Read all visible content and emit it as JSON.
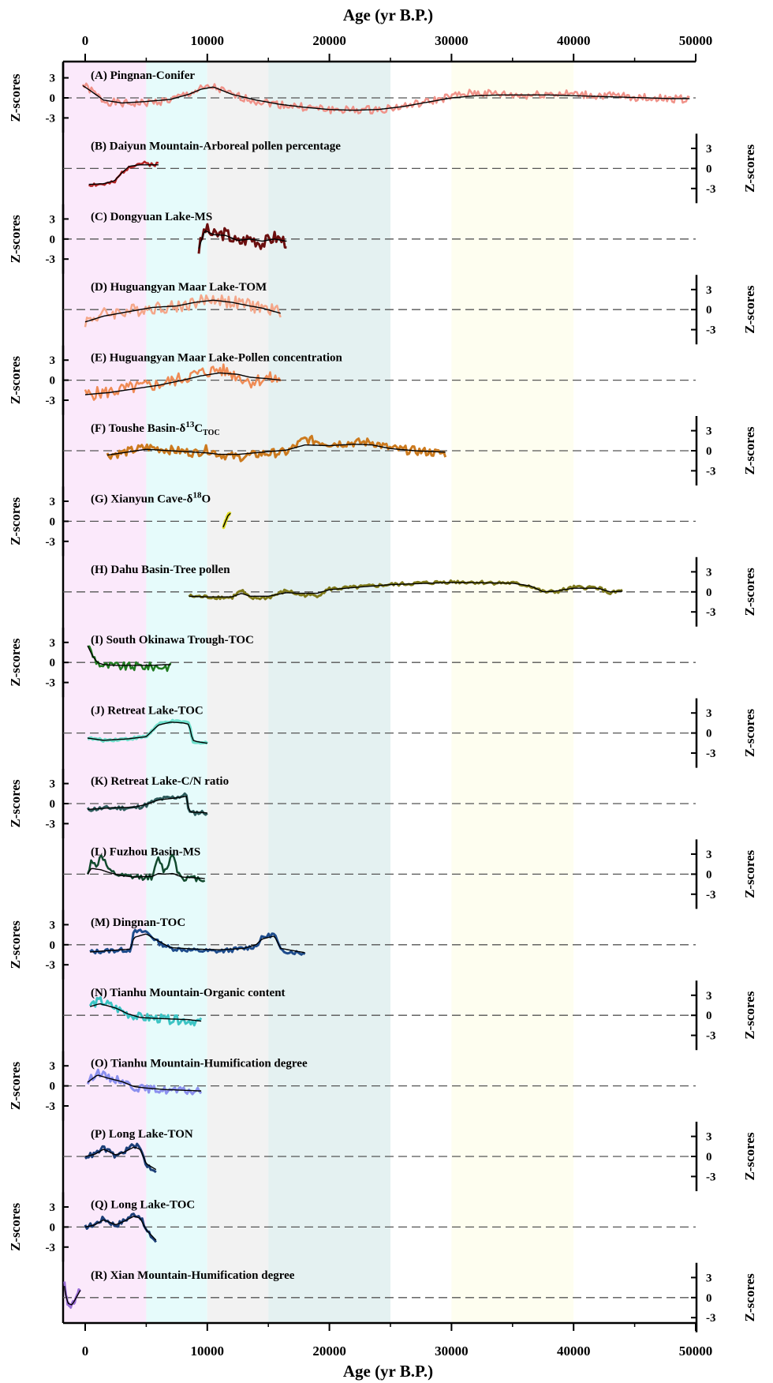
{
  "figure": {
    "x_axis_title": "Age (yr B.P.)",
    "y_axis_title": "Z-scores",
    "x_ticks": [
      0,
      10000,
      20000,
      30000,
      40000,
      50000
    ],
    "x_tick_labels": [
      "0",
      "10000",
      "20000",
      "30000",
      "40000",
      "50000"
    ],
    "z_ticks": [
      3,
      0,
      -3
    ],
    "z_tick_labels": [
      "3",
      "0",
      "-3"
    ]
  },
  "chart_data": {
    "type": "line",
    "title": "",
    "xlabel": "Age (yr B.P.)",
    "ylabel": "Z-scores",
    "xlim": [
      -1800,
      50000
    ],
    "ylim": [
      -4.5,
      4.5
    ],
    "shaded_bands": [
      {
        "from": -1800,
        "to": 5000,
        "color": "#fbe9fb"
      },
      {
        "from": 5000,
        "to": 10000,
        "color": "#e6fbfb"
      },
      {
        "from": 10000,
        "to": 15000,
        "color": "#f2f2f2"
      },
      {
        "from": 15000,
        "to": 25000,
        "color": "#e4f1f1"
      },
      {
        "from": 30000,
        "to": 40000,
        "color": "#fefef0"
      }
    ],
    "panels": [
      {
        "label": "(A) Pingnan-Conifer",
        "color": "#f0938a",
        "width": 2.5,
        "zero": 0,
        "noise": 0.55,
        "seed": 1,
        "x": [
          -200,
          500,
          1500,
          3000,
          5000,
          7000,
          8500,
          9500,
          10500,
          12000,
          14000,
          16000,
          18000,
          20000,
          22000,
          24000,
          26000,
          28000,
          30000,
          32000,
          34000,
          36000,
          38000,
          40000,
          42000,
          44000,
          46000,
          48000,
          49500
        ],
        "y": [
          1.8,
          1.0,
          -0.4,
          -0.8,
          -0.7,
          -0.3,
          0.6,
          1.2,
          1.5,
          0.4,
          -0.4,
          -0.9,
          -1.3,
          -1.6,
          -1.7,
          -1.6,
          -1.2,
          -0.6,
          0.2,
          0.7,
          0.5,
          0.3,
          0.6,
          0.5,
          0.3,
          0.2,
          0.0,
          -0.1,
          -0.2
        ],
        "trend_y": [
          1.7,
          0.9,
          -0.3,
          -0.7,
          -0.5,
          -0.2,
          0.5,
          1.2,
          1.5,
          0.5,
          -0.3,
          -0.9,
          -1.3,
          -1.6,
          -1.7,
          -1.6,
          -1.2,
          -0.6,
          0.0,
          0.3,
          0.4,
          0.4,
          0.4,
          0.3,
          0.2,
          0.1,
          0.0,
          -0.1,
          -0.1
        ]
      },
      {
        "label": "(B) Daiyun Mountain-Arboreal pollen percentage",
        "color": "#b22222",
        "width": 2.5,
        "zero": 0,
        "noise": 0.3,
        "seed": 2,
        "x": [
          300,
          1500,
          2400,
          3000,
          3600,
          4500,
          5500,
          6000
        ],
        "y": [
          -2.2,
          -2.2,
          -2.0,
          -0.6,
          0.3,
          0.7,
          0.6,
          0.6
        ],
        "trend_y": [
          -2.2,
          -2.1,
          -1.7,
          -0.6,
          0.3,
          0.5,
          0.5,
          0.5
        ]
      },
      {
        "label": "(C) Dongyuan Lake-MS",
        "color": "#6b0f0f",
        "width": 3,
        "zero": 0,
        "noise": 0.9,
        "seed": 3,
        "x": [
          9300,
          9800,
          10500,
          11500,
          12500,
          13500,
          14500,
          15500,
          16500
        ],
        "y": [
          -1.5,
          1.5,
          0.5,
          0.8,
          -0.5,
          0.2,
          -0.6,
          0.3,
          -0.4
        ],
        "trend_y": [
          -1.3,
          1.2,
          0.6,
          0.5,
          -0.2,
          0.0,
          -0.3,
          0.0,
          -0.3
        ]
      },
      {
        "label": "(D) Huguangyan Maar Lake-TOM",
        "color": "#f4a78a",
        "width": 2.5,
        "zero": 0,
        "noise": 0.9,
        "seed": 4,
        "x": [
          0,
          1500,
          3500,
          5500,
          7500,
          9000,
          10500,
          12000,
          13500,
          14500,
          16000
        ],
        "y": [
          -1.6,
          -0.6,
          -0.2,
          0.3,
          0.4,
          1.0,
          1.5,
          1.0,
          0.6,
          0.2,
          -0.3
        ],
        "trend_y": [
          -1.7,
          -0.9,
          -0.3,
          0.3,
          0.5,
          1.0,
          1.3,
          1.0,
          0.5,
          0.2,
          -0.5
        ]
      },
      {
        "label": "(E) Huguangyan Maar Lake-Pollen concentration",
        "color": "#ef8b55",
        "width": 2.5,
        "zero": 0,
        "noise": 0.9,
        "seed": 5,
        "x": [
          0,
          2000,
          4000,
          6000,
          8000,
          9500,
          11000,
          12500,
          13500,
          15000,
          16000
        ],
        "y": [
          -2.0,
          -1.6,
          -1.0,
          -0.6,
          0.3,
          1.0,
          1.5,
          0.6,
          -0.2,
          0.3,
          0.0
        ],
        "trend_y": [
          -2.0,
          -1.7,
          -1.2,
          -0.7,
          0.0,
          0.6,
          1.0,
          0.8,
          0.4,
          0.2,
          0.0
        ]
      },
      {
        "label": "(F) Toushe Basin-δ13CTOC",
        "label_html": true,
        "color": "#cc7a1e",
        "width": 3,
        "zero": 0,
        "noise": 0.6,
        "seed": 6,
        "x": [
          1800,
          3000,
          5000,
          7000,
          9000,
          10000,
          11000,
          12500,
          14500,
          16500,
          18000,
          20000,
          22000,
          23500,
          25000,
          27000,
          29500
        ],
        "y": [
          -0.6,
          -0.3,
          0.5,
          0.1,
          -0.3,
          0.2,
          -0.5,
          -0.9,
          -0.4,
          -0.2,
          1.6,
          1.0,
          1.1,
          1.2,
          0.3,
          0.0,
          -0.4
        ],
        "trend_y": [
          -0.6,
          -0.3,
          0.2,
          0.0,
          -0.2,
          -0.3,
          -0.5,
          -0.5,
          -0.2,
          0.1,
          0.8,
          0.7,
          0.9,
          0.8,
          0.3,
          0.0,
          -0.2
        ]
      },
      {
        "label": "(G) Xianyun Cave-δ18O",
        "label_html": true,
        "color": "#e0dc1e",
        "width": 4,
        "zero": 0,
        "noise": 0.2,
        "seed": 7,
        "x": [
          11300,
          11500,
          11700,
          11900
        ],
        "y": [
          -0.8,
          0.0,
          0.9,
          1.2
        ],
        "trend_y": [
          -0.8,
          0.0,
          0.8,
          1.1
        ]
      },
      {
        "label": "(H) Dahu Basin-Tree pollen",
        "color": "#7f7a1a",
        "width": 3,
        "zero": 0,
        "noise": 0.25,
        "seed": 8,
        "x": [
          8500,
          10000,
          12000,
          12800,
          13500,
          15000,
          16500,
          17500,
          19000,
          20000,
          22000,
          25000,
          30000,
          35000,
          36500,
          37500,
          38500,
          40000,
          42000,
          43000,
          44000
        ],
        "y": [
          -0.6,
          -0.7,
          -0.8,
          0.2,
          -0.9,
          -0.8,
          0.2,
          -0.4,
          -0.5,
          0.4,
          0.6,
          1.0,
          1.4,
          1.2,
          0.8,
          0.0,
          0.0,
          0.6,
          0.6,
          -0.2,
          0.2
        ],
        "trend_y": [
          -0.6,
          -0.7,
          -0.7,
          -0.2,
          -0.6,
          -0.6,
          -0.1,
          -0.2,
          -0.2,
          0.3,
          0.6,
          1.0,
          1.3,
          1.2,
          0.8,
          0.0,
          0.1,
          0.5,
          0.5,
          0.0,
          0.1
        ]
      },
      {
        "label": "(I) South Okinawa Trough-TOC",
        "color": "#1f7a1f",
        "width": 2.5,
        "zero": 0.6,
        "noise": 0.6,
        "seed": 9,
        "x": [
          200,
          600,
          1000,
          1500,
          2500,
          3500,
          4500,
          5500,
          6500,
          7000
        ],
        "y": [
          2.5,
          1.0,
          0.0,
          -0.5,
          -0.5,
          -0.6,
          -0.5,
          -0.6,
          -0.6,
          -0.6
        ],
        "trend_y": [
          2.3,
          0.9,
          0.0,
          -0.3,
          -0.4,
          -0.4,
          -0.4,
          -0.4,
          -0.3,
          -0.3
        ]
      },
      {
        "label": "(J) Retreat Lake-TOC",
        "color": "#6fe0cc",
        "width": 4,
        "zero": 0,
        "noise": 0.15,
        "seed": 10,
        "x": [
          200,
          1500,
          3500,
          5000,
          6000,
          7000,
          8000,
          8500,
          8800,
          9200,
          10000
        ],
        "y": [
          -0.7,
          -1.0,
          -0.8,
          -0.5,
          1.2,
          1.6,
          1.5,
          1.4,
          -1.1,
          -1.3,
          -1.4
        ],
        "trend_y": [
          -0.7,
          -1.0,
          -0.8,
          -0.5,
          1.1,
          1.5,
          1.4,
          1.2,
          -1.0,
          -1.2,
          -1.4
        ]
      },
      {
        "label": "(K) Retreat Lake-C/N ratio",
        "color": "#2e5c5c",
        "width": 3,
        "zero": 0,
        "noise": 0.3,
        "seed": 11,
        "x": [
          200,
          2000,
          4000,
          5000,
          6000,
          7500,
          8300,
          8500,
          8800,
          9500,
          10000
        ],
        "y": [
          -0.8,
          -0.6,
          -0.6,
          -0.2,
          0.6,
          0.9,
          1.2,
          -1.2,
          -1.3,
          -1.2,
          -1.3
        ],
        "trend_y": [
          -0.8,
          -0.6,
          -0.5,
          -0.1,
          0.5,
          0.8,
          1.0,
          -1.0,
          -1.2,
          -1.2,
          -1.3
        ]
      },
      {
        "label": "(L) Fuzhou Basin-MS",
        "color": "#124a2e",
        "width": 2.5,
        "zero": 0,
        "noise": 0.4,
        "seed": 12,
        "x": [
          200,
          500,
          900,
          1300,
          2000,
          3000,
          4000,
          5500,
          6000,
          6500,
          7200,
          7600,
          8000,
          9000,
          9800
        ],
        "y": [
          -0.2,
          2.2,
          0.8,
          2.8,
          0.3,
          -0.3,
          -0.4,
          -0.4,
          2.2,
          0.2,
          3.0,
          0.2,
          -0.5,
          -0.6,
          -0.7
        ],
        "trend_y": [
          0.0,
          0.8,
          0.7,
          0.6,
          0.2,
          -0.2,
          -0.4,
          -0.3,
          0.1,
          0.0,
          0.1,
          -0.2,
          -0.4,
          -0.5,
          -0.6
        ]
      },
      {
        "label": "(M) Dingnan-TOC",
        "color": "#1e4c8c",
        "width": 3,
        "zero": 0,
        "noise": 0.3,
        "seed": 13,
        "x": [
          400,
          2000,
          3700,
          4000,
          5000,
          6000,
          7000,
          9000,
          11000,
          13000,
          14000,
          14500,
          15500,
          16000,
          18000
        ],
        "y": [
          -1.0,
          -0.8,
          -0.7,
          1.8,
          1.8,
          0.3,
          -0.5,
          -0.8,
          -0.9,
          -0.5,
          -0.2,
          1.0,
          1.5,
          -0.8,
          -1.2
        ],
        "trend_y": [
          -1.0,
          -0.8,
          -0.6,
          1.0,
          1.5,
          0.5,
          -0.4,
          -0.6,
          -0.7,
          -0.5,
          0.0,
          0.8,
          1.2,
          -0.5,
          -1.1
        ]
      },
      {
        "label": "(N) Tianhu Mountain-Organic content",
        "color": "#3cc4c4",
        "width": 3,
        "zero": 0,
        "noise": 0.6,
        "seed": 14,
        "x": [
          400,
          1200,
          2500,
          3500,
          4500,
          5500,
          7000,
          8500,
          9500
        ],
        "y": [
          1.4,
          2.0,
          1.0,
          0.2,
          -0.3,
          -0.4,
          -0.6,
          -0.7,
          -0.9
        ],
        "trend_y": [
          1.2,
          1.6,
          1.0,
          0.2,
          -0.3,
          -0.4,
          -0.5,
          -0.6,
          -0.8
        ]
      },
      {
        "label": "(O) Tianhu Mountain-Humification degree",
        "color": "#8b90ee",
        "width": 3,
        "zero": 0,
        "noise": 0.5,
        "seed": 15,
        "x": [
          200,
          1000,
          2000,
          3000,
          4000,
          5000,
          6500,
          8000,
          9500
        ],
        "y": [
          0.5,
          2.0,
          1.0,
          0.8,
          -0.2,
          -0.4,
          -0.6,
          -0.7,
          -0.8
        ],
        "trend_y": [
          0.5,
          1.5,
          1.0,
          0.6,
          -0.1,
          -0.3,
          -0.5,
          -0.6,
          -0.7
        ]
      },
      {
        "label": "(P) Long Lake-TON",
        "color": "#1c3f78",
        "width": 3,
        "zero": 0,
        "noise": 0.35,
        "seed": 16,
        "x": [
          0,
          800,
          1500,
          2500,
          3200,
          4000,
          4500,
          5000,
          5800
        ],
        "y": [
          0.0,
          0.3,
          1.2,
          0.0,
          0.7,
          1.6,
          1.2,
          -1.2,
          -2.0
        ],
        "trend_y": [
          0.0,
          0.3,
          1.0,
          0.2,
          0.6,
          1.3,
          1.0,
          -1.0,
          -1.8
        ]
      },
      {
        "label": "(Q) Long Lake-TOC",
        "color": "#1c3f78",
        "width": 3,
        "zero": 0,
        "noise": 0.35,
        "seed": 17,
        "x": [
          0,
          800,
          1500,
          2500,
          3200,
          4000,
          4500,
          5000,
          5800
        ],
        "y": [
          0.0,
          0.4,
          1.2,
          0.2,
          0.9,
          1.8,
          1.5,
          -0.5,
          -2.0
        ],
        "trend_y": [
          0.0,
          0.3,
          1.0,
          0.3,
          0.8,
          1.5,
          1.2,
          -0.4,
          -1.8
        ]
      },
      {
        "label": "(R) Xian Mountain-Humification degree",
        "color": "#9a6fd6",
        "width": 3,
        "zero": 0,
        "noise": 0.4,
        "seed": 18,
        "x": [
          -1700,
          -1600,
          -1400,
          -1100,
          -900,
          -600,
          -400
        ],
        "y": [
          2.0,
          0.4,
          -1.0,
          -1.2,
          -0.6,
          0.6,
          1.2
        ],
        "trend_y": [
          1.6,
          0.4,
          -0.8,
          -1.0,
          -0.5,
          0.4,
          1.0
        ]
      }
    ]
  }
}
